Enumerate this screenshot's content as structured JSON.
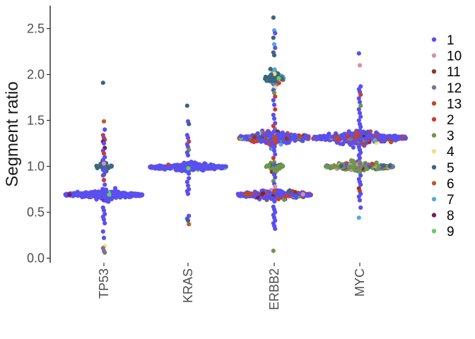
{
  "chart_data": {
    "type": "scatter",
    "style": "beeswarm",
    "ylabel": "Segment ratio",
    "xlabel": "",
    "categories": [
      "TP53",
      "KRAS",
      "ERBB2",
      "MYC"
    ],
    "ylim": [
      -0.05,
      2.75
    ],
    "yticks": [
      0.0,
      0.5,
      1.0,
      1.5,
      2.0,
      2.5
    ],
    "ytick_labels": [
      "0.0",
      "0.5",
      "1.0",
      "1.5",
      "2.0",
      "2.5"
    ],
    "grid": false,
    "legend_position": "right",
    "legend": [
      {
        "label": "1",
        "color": "#5a4fef"
      },
      {
        "label": "10",
        "color": "#d98fae"
      },
      {
        "label": "11",
        "color": "#8b3a24"
      },
      {
        "label": "12",
        "color": "#7e7490"
      },
      {
        "label": "13",
        "color": "#c2491d"
      },
      {
        "label": "2",
        "color": "#cc3b33"
      },
      {
        "label": "3",
        "color": "#6e9845"
      },
      {
        "label": "4",
        "color": "#efe07e"
      },
      {
        "label": "5",
        "color": "#3b6680"
      },
      {
        "label": "6",
        "color": "#bf5a2c"
      },
      {
        "label": "7",
        "color": "#57aad8"
      },
      {
        "label": "8",
        "color": "#7a1e50"
      },
      {
        "label": "9",
        "color": "#67d15a"
      }
    ],
    "groups": [
      {
        "name": "TP53",
        "clusters": [
          {
            "center": 0.69,
            "halfwidth": 55,
            "spread": 0.025,
            "count": 380,
            "colors": [
              "#5a4fef"
            ],
            "mix": 0.08
          },
          {
            "center": 1.0,
            "halfwidth": 12,
            "spread": 0.03,
            "count": 40,
            "colors": [
              "#3b6680",
              "#5a4fef",
              "#d98fae"
            ],
            "mix": 0.3
          }
        ],
        "points": [
          {
            "y": 1.91,
            "color": "#3b6680"
          },
          {
            "y": 1.49,
            "color": "#bf5a2c"
          },
          {
            "y": 1.4,
            "color": "#5a4fef"
          },
          {
            "y": 1.34,
            "color": "#cc3b33"
          },
          {
            "y": 1.31,
            "color": "#5a4fef"
          },
          {
            "y": 1.29,
            "color": "#cc3b33"
          },
          {
            "y": 1.27,
            "color": "#7a1e50"
          },
          {
            "y": 1.25,
            "color": "#5a4fef"
          },
          {
            "y": 1.2,
            "color": "#7a1e50"
          },
          {
            "y": 1.17,
            "color": "#5a4fef"
          },
          {
            "y": 1.14,
            "color": "#cc3b33"
          },
          {
            "y": 1.1,
            "color": "#5a4fef"
          },
          {
            "y": 1.07,
            "color": "#5a4fef"
          },
          {
            "y": 1.03,
            "color": "#d98fae"
          },
          {
            "y": 0.95,
            "color": "#5a4fef"
          },
          {
            "y": 0.9,
            "color": "#5a4fef"
          },
          {
            "y": 0.85,
            "color": "#cc3b33"
          },
          {
            "y": 0.8,
            "color": "#5a4fef"
          },
          {
            "y": 0.55,
            "color": "#5a4fef"
          },
          {
            "y": 0.52,
            "color": "#5a4fef"
          },
          {
            "y": 0.48,
            "color": "#5a4fef"
          },
          {
            "y": 0.45,
            "color": "#5a4fef"
          },
          {
            "y": 0.42,
            "color": "#5a4fef"
          },
          {
            "y": 0.38,
            "color": "#5a4fef"
          },
          {
            "y": 0.29,
            "color": "#5a4fef"
          },
          {
            "y": 0.22,
            "color": "#5a4fef"
          },
          {
            "y": 0.13,
            "color": "#efe07e"
          },
          {
            "y": 0.11,
            "color": "#7e7490"
          },
          {
            "y": 0.08,
            "color": "#7e7490"
          },
          {
            "y": 0.06,
            "color": "#7e7490"
          }
        ]
      },
      {
        "name": "KRAS",
        "clusters": [
          {
            "center": 0.99,
            "halfwidth": 54,
            "spread": 0.025,
            "count": 420,
            "colors": [
              "#5a4fef"
            ],
            "mix": 0.15
          }
        ],
        "points": [
          {
            "y": 1.66,
            "color": "#3b6680"
          },
          {
            "y": 1.49,
            "color": "#5a4fef"
          },
          {
            "y": 1.46,
            "color": "#3b6680"
          },
          {
            "y": 1.34,
            "color": "#5a4fef"
          },
          {
            "y": 1.31,
            "color": "#5a4fef"
          },
          {
            "y": 1.27,
            "color": "#cc3b33"
          },
          {
            "y": 1.24,
            "color": "#5a4fef"
          },
          {
            "y": 1.21,
            "color": "#5a4fef"
          },
          {
            "y": 1.18,
            "color": "#6e9845"
          },
          {
            "y": 1.15,
            "color": "#5a4fef"
          },
          {
            "y": 1.12,
            "color": "#5a4fef"
          },
          {
            "y": 0.87,
            "color": "#5a4fef"
          },
          {
            "y": 0.83,
            "color": "#5a4fef"
          },
          {
            "y": 0.79,
            "color": "#5a4fef"
          },
          {
            "y": 0.75,
            "color": "#5a4fef"
          },
          {
            "y": 0.73,
            "color": "#5a4fef"
          },
          {
            "y": 0.7,
            "color": "#5a4fef"
          },
          {
            "y": 0.46,
            "color": "#5a4fef"
          },
          {
            "y": 0.43,
            "color": "#5a4fef"
          },
          {
            "y": 0.41,
            "color": "#3b6680"
          },
          {
            "y": 0.37,
            "color": "#bf5a2c"
          }
        ]
      },
      {
        "name": "ERBB2",
        "clusters": [
          {
            "center": 0.69,
            "halfwidth": 52,
            "spread": 0.03,
            "count": 380,
            "colors": [
              "#5a4fef",
              "#cc3b33",
              "#c2491d"
            ],
            "mix": 0.45
          },
          {
            "center": 1.31,
            "halfwidth": 50,
            "spread": 0.04,
            "count": 360,
            "colors": [
              "#5a4fef",
              "#cc3b33",
              "#c2491d"
            ],
            "mix": 0.45
          },
          {
            "center": 1.96,
            "halfwidth": 13,
            "spread": 0.06,
            "count": 110,
            "colors": [
              "#3b6680",
              "#57aad8",
              "#cc3b33"
            ],
            "mix": 0.4
          },
          {
            "center": 1.0,
            "halfwidth": 12,
            "spread": 0.03,
            "count": 45,
            "colors": [
              "#6e9845",
              "#3b6680",
              "#5a4fef"
            ],
            "mix": 0.4
          }
        ],
        "points": [
          {
            "y": 2.62,
            "color": "#3b6680"
          },
          {
            "y": 2.48,
            "color": "#57aad8"
          },
          {
            "y": 2.45,
            "color": "#5a4fef"
          },
          {
            "y": 2.4,
            "color": "#3b6680"
          },
          {
            "y": 2.33,
            "color": "#57aad8"
          },
          {
            "y": 2.29,
            "color": "#5a4fef"
          },
          {
            "y": 2.24,
            "color": "#3b6680"
          },
          {
            "y": 2.21,
            "color": "#3b6680"
          },
          {
            "y": 1.86,
            "color": "#efe07e"
          },
          {
            "y": 1.83,
            "color": "#5a4fef"
          },
          {
            "y": 1.8,
            "color": "#6e9845"
          },
          {
            "y": 1.76,
            "color": "#cc3b33"
          },
          {
            "y": 1.72,
            "color": "#5a4fef"
          },
          {
            "y": 1.67,
            "color": "#5a4fef"
          },
          {
            "y": 1.62,
            "color": "#cc3b33"
          },
          {
            "y": 1.56,
            "color": "#5a4fef"
          },
          {
            "y": 1.52,
            "color": "#5a4fef"
          },
          {
            "y": 1.47,
            "color": "#5a4fef"
          },
          {
            "y": 1.44,
            "color": "#cc3b33"
          },
          {
            "y": 1.17,
            "color": "#5a4fef"
          },
          {
            "y": 1.13,
            "color": "#5a4fef"
          },
          {
            "y": 1.09,
            "color": "#cc3b33"
          },
          {
            "y": 0.91,
            "color": "#5a4fef"
          },
          {
            "y": 0.88,
            "color": "#5a4fef"
          },
          {
            "y": 0.84,
            "color": "#6e9845"
          },
          {
            "y": 0.81,
            "color": "#5a4fef"
          },
          {
            "y": 0.78,
            "color": "#d98fae"
          },
          {
            "y": 0.56,
            "color": "#5a4fef"
          },
          {
            "y": 0.53,
            "color": "#5a4fef"
          },
          {
            "y": 0.5,
            "color": "#5a4fef"
          },
          {
            "y": 0.47,
            "color": "#5a4fef"
          },
          {
            "y": 0.44,
            "color": "#5a4fef"
          },
          {
            "y": 0.41,
            "color": "#5a4fef"
          },
          {
            "y": 0.38,
            "color": "#5a4fef"
          },
          {
            "y": 0.35,
            "color": "#5a4fef"
          },
          {
            "y": 0.32,
            "color": "#5a4fef"
          },
          {
            "y": 0.08,
            "color": "#6e9845"
          }
        ]
      },
      {
        "name": "MYC",
        "clusters": [
          {
            "center": 1.31,
            "halfwidth": 66,
            "spread": 0.035,
            "count": 460,
            "colors": [
              "#5a4fef",
              "#c2491d",
              "#cc3b33"
            ],
            "mix": 0.35
          },
          {
            "center": 1.0,
            "halfwidth": 48,
            "spread": 0.03,
            "count": 280,
            "colors": [
              "#6e9845",
              "#5a4fef",
              "#d98fae",
              "#7e7490",
              "#3b6680"
            ],
            "mix": 0.6
          }
        ],
        "points": [
          {
            "y": 2.23,
            "color": "#5a4fef"
          },
          {
            "y": 2.1,
            "color": "#d98fae"
          },
          {
            "y": 1.87,
            "color": "#5a4fef"
          },
          {
            "y": 1.84,
            "color": "#5a4fef"
          },
          {
            "y": 1.81,
            "color": "#5a4fef"
          },
          {
            "y": 1.78,
            "color": "#cc3b33"
          },
          {
            "y": 1.74,
            "color": "#5a4fef"
          },
          {
            "y": 1.7,
            "color": "#5a4fef"
          },
          {
            "y": 1.66,
            "color": "#6e9845"
          },
          {
            "y": 1.62,
            "color": "#5a4fef"
          },
          {
            "y": 1.58,
            "color": "#5a4fef"
          },
          {
            "y": 1.54,
            "color": "#5a4fef"
          },
          {
            "y": 1.5,
            "color": "#5a4fef"
          },
          {
            "y": 1.46,
            "color": "#5a4fef"
          },
          {
            "y": 1.43,
            "color": "#5a4fef"
          },
          {
            "y": 1.21,
            "color": "#5a4fef"
          },
          {
            "y": 1.18,
            "color": "#5a4fef"
          },
          {
            "y": 1.15,
            "color": "#5a4fef"
          },
          {
            "y": 1.12,
            "color": "#5a4fef"
          },
          {
            "y": 1.09,
            "color": "#5a4fef"
          },
          {
            "y": 0.9,
            "color": "#5a4fef"
          },
          {
            "y": 0.86,
            "color": "#5a4fef"
          },
          {
            "y": 0.83,
            "color": "#5a4fef"
          },
          {
            "y": 0.8,
            "color": "#5a4fef"
          },
          {
            "y": 0.76,
            "color": "#8b3a24"
          },
          {
            "y": 0.73,
            "color": "#cc3b33"
          },
          {
            "y": 0.7,
            "color": "#5a4fef"
          },
          {
            "y": 0.67,
            "color": "#5a4fef"
          },
          {
            "y": 0.63,
            "color": "#5a4fef"
          },
          {
            "y": 0.55,
            "color": "#5a4fef"
          },
          {
            "y": 0.44,
            "color": "#57aad8"
          }
        ]
      }
    ]
  }
}
